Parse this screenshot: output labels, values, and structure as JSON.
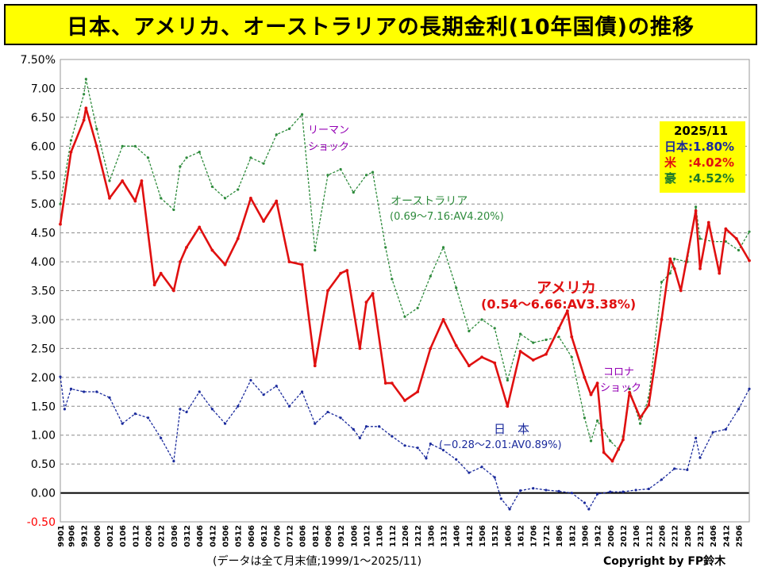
{
  "title": "日本、アメリカ、オーストラリアの長期金利(10年国債)の推移",
  "footer_note": "(データは全て月末値;1999/1～2025/11)",
  "copyright": "Copyright by FP鈴木",
  "latest": {
    "date": "2025/11",
    "japan": "日本:1.80%",
    "us": "米　:4.02%",
    "australia": "豪　:4.52%"
  },
  "annotations": {
    "lehman_1": "リーマン",
    "lehman_2": "ショック",
    "covid_1": "コロナ",
    "covid_2": "ショック",
    "australia_name": "オーストラリア",
    "australia_range": "(0.69～7.16:AV4.20%)",
    "us_name": "アメリカ",
    "us_range": "(0.54～6.66:AV3.38%)",
    "japan_name": "日　本",
    "japan_range": "(−0.28～2.01:AV0.89%)"
  },
  "colors": {
    "title_bg": "#ffff00",
    "us": "#e01010",
    "australia": "#2e8b3c",
    "japan": "#1a2a9c",
    "annotation_purple": "#9400b4",
    "axis_negative": "#ff0000"
  },
  "chart_data": {
    "type": "line",
    "title": "日本、アメリカ、オーストラリアの長期金利(10年国債)の推移",
    "ylim": [
      -0.5,
      7.5
    ],
    "yticks": [
      "7.50%",
      "7.00",
      "6.50",
      "6.00",
      "5.50",
      "5.00",
      "4.50",
      "4.00",
      "3.50",
      "3.00",
      "2.50",
      "2.00",
      "1.50",
      "1.00",
      "0.50",
      "0.00",
      "-0.50"
    ],
    "grid": true,
    "x_start": "1999/1",
    "x_end": "2025/11",
    "xticks": [
      "9901",
      "9906",
      "9912",
      "0006",
      "0012",
      "0106",
      "0112",
      "0206",
      "0212",
      "0306",
      "0312",
      "0406",
      "0412",
      "0506",
      "0512",
      "0606",
      "0612",
      "0706",
      "0712",
      "0806",
      "0812",
      "0906",
      "0912",
      "1006",
      "1012",
      "1106",
      "1112",
      "1206",
      "1212",
      "1306",
      "1312",
      "1406",
      "1412",
      "1506",
      "1512",
      "1606",
      "1612",
      "1706",
      "1712",
      "1806",
      "1812",
      "1906",
      "1912",
      "2006",
      "2012",
      "2106",
      "2112",
      "2206",
      "2212",
      "2306",
      "2312",
      "2406",
      "2412",
      "2506"
    ],
    "series": [
      {
        "name": "アメリカ",
        "style": "solid",
        "points": [
          [
            "1999/1",
            4.65
          ],
          [
            "1999/6",
            5.9
          ],
          [
            "1999/12",
            6.45
          ],
          [
            "2000/1",
            6.66
          ],
          [
            "2000/6",
            6.0
          ],
          [
            "2000/12",
            5.1
          ],
          [
            "2001/6",
            5.4
          ],
          [
            "2001/12",
            5.05
          ],
          [
            "2002/3",
            5.4
          ],
          [
            "2002/9",
            3.6
          ],
          [
            "2002/12",
            3.8
          ],
          [
            "2003/6",
            3.5
          ],
          [
            "2003/9",
            4.0
          ],
          [
            "2003/12",
            4.25
          ],
          [
            "2004/6",
            4.6
          ],
          [
            "2004/12",
            4.2
          ],
          [
            "2005/6",
            3.95
          ],
          [
            "2005/12",
            4.4
          ],
          [
            "2006/6",
            5.1
          ],
          [
            "2006/12",
            4.7
          ],
          [
            "2007/6",
            5.05
          ],
          [
            "2007/12",
            4.0
          ],
          [
            "2008/6",
            3.95
          ],
          [
            "2008/12",
            2.2
          ],
          [
            "2009/6",
            3.5
          ],
          [
            "2009/12",
            3.8
          ],
          [
            "2010/3",
            3.85
          ],
          [
            "2010/9",
            2.5
          ],
          [
            "2010/12",
            3.3
          ],
          [
            "2011/3",
            3.45
          ],
          [
            "2011/9",
            1.9
          ],
          [
            "2011/12",
            1.9
          ],
          [
            "2012/6",
            1.6
          ],
          [
            "2012/12",
            1.75
          ],
          [
            "2013/6",
            2.5
          ],
          [
            "2013/12",
            3.0
          ],
          [
            "2014/6",
            2.55
          ],
          [
            "2014/12",
            2.2
          ],
          [
            "2015/6",
            2.35
          ],
          [
            "2015/12",
            2.25
          ],
          [
            "2016/6",
            1.5
          ],
          [
            "2016/12",
            2.45
          ],
          [
            "2017/6",
            2.3
          ],
          [
            "2017/12",
            2.4
          ],
          [
            "2018/6",
            2.85
          ],
          [
            "2018/10",
            3.15
          ],
          [
            "2018/12",
            2.7
          ],
          [
            "2019/6",
            2.0
          ],
          [
            "2019/9",
            1.7
          ],
          [
            "2019/12",
            1.9
          ],
          [
            "2020/3",
            0.7
          ],
          [
            "2020/7",
            0.55
          ],
          [
            "2020/12",
            0.92
          ],
          [
            "2021/3",
            1.74
          ],
          [
            "2021/8",
            1.3
          ],
          [
            "2021/12",
            1.52
          ],
          [
            "2022/6",
            3.0
          ],
          [
            "2022/10",
            4.05
          ],
          [
            "2022/12",
            3.88
          ],
          [
            "2023/3",
            3.5
          ],
          [
            "2023/10",
            4.88
          ],
          [
            "2023/12",
            3.88
          ],
          [
            "2024/4",
            4.68
          ],
          [
            "2024/9",
            3.8
          ],
          [
            "2024/12",
            4.57
          ],
          [
            "2025/5",
            4.4
          ],
          [
            "2025/11",
            4.02
          ]
        ]
      },
      {
        "name": "オーストラリア",
        "style": "dashed",
        "points": [
          [
            "1999/1",
            5.0
          ],
          [
            "1999/6",
            6.1
          ],
          [
            "1999/12",
            6.9
          ],
          [
            "2000/1",
            7.16
          ],
          [
            "2000/6",
            6.3
          ],
          [
            "2000/12",
            5.4
          ],
          [
            "2001/6",
            6.0
          ],
          [
            "2001/12",
            6.0
          ],
          [
            "2002/6",
            5.8
          ],
          [
            "2002/12",
            5.1
          ],
          [
            "2003/6",
            4.9
          ],
          [
            "2003/9",
            5.65
          ],
          [
            "2003/12",
            5.8
          ],
          [
            "2004/6",
            5.9
          ],
          [
            "2004/12",
            5.3
          ],
          [
            "2005/6",
            5.1
          ],
          [
            "2005/12",
            5.25
          ],
          [
            "2006/6",
            5.8
          ],
          [
            "2006/12",
            5.7
          ],
          [
            "2007/6",
            6.2
          ],
          [
            "2007/12",
            6.3
          ],
          [
            "2008/6",
            6.55
          ],
          [
            "2008/12",
            4.2
          ],
          [
            "2009/6",
            5.5
          ],
          [
            "2009/12",
            5.6
          ],
          [
            "2010/6",
            5.2
          ],
          [
            "2010/12",
            5.5
          ],
          [
            "2011/3",
            5.55
          ],
          [
            "2011/9",
            4.25
          ],
          [
            "2011/12",
            3.7
          ],
          [
            "2012/6",
            3.05
          ],
          [
            "2012/12",
            3.2
          ],
          [
            "2013/6",
            3.75
          ],
          [
            "2013/12",
            4.25
          ],
          [
            "2014/6",
            3.55
          ],
          [
            "2014/12",
            2.8
          ],
          [
            "2015/6",
            3.0
          ],
          [
            "2015/12",
            2.85
          ],
          [
            "2016/6",
            1.95
          ],
          [
            "2016/12",
            2.75
          ],
          [
            "2017/6",
            2.6
          ],
          [
            "2017/12",
            2.65
          ],
          [
            "2018/6",
            2.7
          ],
          [
            "2018/12",
            2.35
          ],
          [
            "2019/6",
            1.3
          ],
          [
            "2019/9",
            0.9
          ],
          [
            "2019/12",
            1.25
          ],
          [
            "2020/6",
            0.9
          ],
          [
            "2020/10",
            0.75
          ],
          [
            "2020/12",
            0.97
          ],
          [
            "2021/3",
            1.8
          ],
          [
            "2021/8",
            1.2
          ],
          [
            "2021/12",
            1.65
          ],
          [
            "2022/6",
            3.65
          ],
          [
            "2022/10",
            3.8
          ],
          [
            "2022/12",
            4.05
          ],
          [
            "2023/6",
            4.0
          ],
          [
            "2023/10",
            4.95
          ],
          [
            "2023/12",
            4.4
          ],
          [
            "2024/6",
            4.35
          ],
          [
            "2024/12",
            4.35
          ],
          [
            "2025/6",
            4.2
          ],
          [
            "2025/11",
            4.52
          ]
        ]
      },
      {
        "name": "日　本",
        "style": "dashed",
        "points": [
          [
            "1999/1",
            2.01
          ],
          [
            "1999/3",
            1.45
          ],
          [
            "1999/6",
            1.8
          ],
          [
            "1999/12",
            1.75
          ],
          [
            "2000/6",
            1.75
          ],
          [
            "2000/12",
            1.65
          ],
          [
            "2001/6",
            1.2
          ],
          [
            "2001/12",
            1.37
          ],
          [
            "2002/6",
            1.3
          ],
          [
            "2002/12",
            0.95
          ],
          [
            "2003/6",
            0.55
          ],
          [
            "2003/9",
            1.45
          ],
          [
            "2003/12",
            1.4
          ],
          [
            "2004/6",
            1.75
          ],
          [
            "2004/12",
            1.45
          ],
          [
            "2005/6",
            1.2
          ],
          [
            "2005/12",
            1.5
          ],
          [
            "2006/6",
            1.95
          ],
          [
            "2006/12",
            1.7
          ],
          [
            "2007/6",
            1.85
          ],
          [
            "2007/12",
            1.5
          ],
          [
            "2008/6",
            1.75
          ],
          [
            "2008/12",
            1.2
          ],
          [
            "2009/6",
            1.4
          ],
          [
            "2009/12",
            1.3
          ],
          [
            "2010/6",
            1.1
          ],
          [
            "2010/9",
            0.95
          ],
          [
            "2010/12",
            1.15
          ],
          [
            "2011/6",
            1.15
          ],
          [
            "2011/12",
            0.98
          ],
          [
            "2012/6",
            0.82
          ],
          [
            "2012/12",
            0.78
          ],
          [
            "2013/4",
            0.6
          ],
          [
            "2013/6",
            0.85
          ],
          [
            "2013/12",
            0.74
          ],
          [
            "2014/6",
            0.58
          ],
          [
            "2014/12",
            0.35
          ],
          [
            "2015/6",
            0.45
          ],
          [
            "2015/12",
            0.27
          ],
          [
            "2016/3",
            -0.1
          ],
          [
            "2016/7",
            -0.28
          ],
          [
            "2016/12",
            0.04
          ],
          [
            "2017/6",
            0.08
          ],
          [
            "2017/12",
            0.05
          ],
          [
            "2018/6",
            0.03
          ],
          [
            "2018/12",
            0.0
          ],
          [
            "2019/6",
            -0.17
          ],
          [
            "2019/8",
            -0.28
          ],
          [
            "2019/12",
            -0.02
          ],
          [
            "2020/6",
            0.02
          ],
          [
            "2020/12",
            0.02
          ],
          [
            "2021/6",
            0.05
          ],
          [
            "2021/12",
            0.07
          ],
          [
            "2022/6",
            0.23
          ],
          [
            "2022/12",
            0.42
          ],
          [
            "2023/6",
            0.4
          ],
          [
            "2023/10",
            0.95
          ],
          [
            "2023/12",
            0.61
          ],
          [
            "2024/6",
            1.05
          ],
          [
            "2024/12",
            1.1
          ],
          [
            "2025/6",
            1.45
          ],
          [
            "2025/11",
            1.8
          ]
        ]
      }
    ]
  }
}
